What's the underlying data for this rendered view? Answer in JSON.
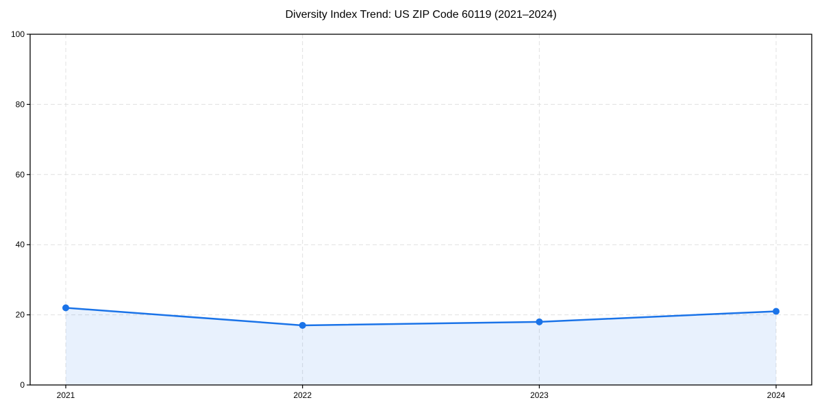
{
  "chart_data": {
    "type": "area",
    "title": "Diversity Index Trend: US ZIP Code 60119 (2021–2024)",
    "categories": [
      "2021",
      "2022",
      "2023",
      "2024"
    ],
    "series": [
      {
        "name": "Diversity Index",
        "values": [
          22,
          17,
          18,
          21
        ]
      }
    ],
    "xlabel": "",
    "ylabel": "",
    "ylim": [
      0,
      100
    ],
    "yticks": [
      0,
      20,
      40,
      60,
      80,
      100
    ],
    "grid": true,
    "grid_style": "dashed",
    "legend_position": "none",
    "colors": {
      "line": "#1a73e8",
      "marker": "#1a73e8",
      "fill": "rgba(26,115,232,0.10)",
      "grid": "#e0e0e0",
      "axis": "#000000",
      "text": "#000000"
    }
  }
}
